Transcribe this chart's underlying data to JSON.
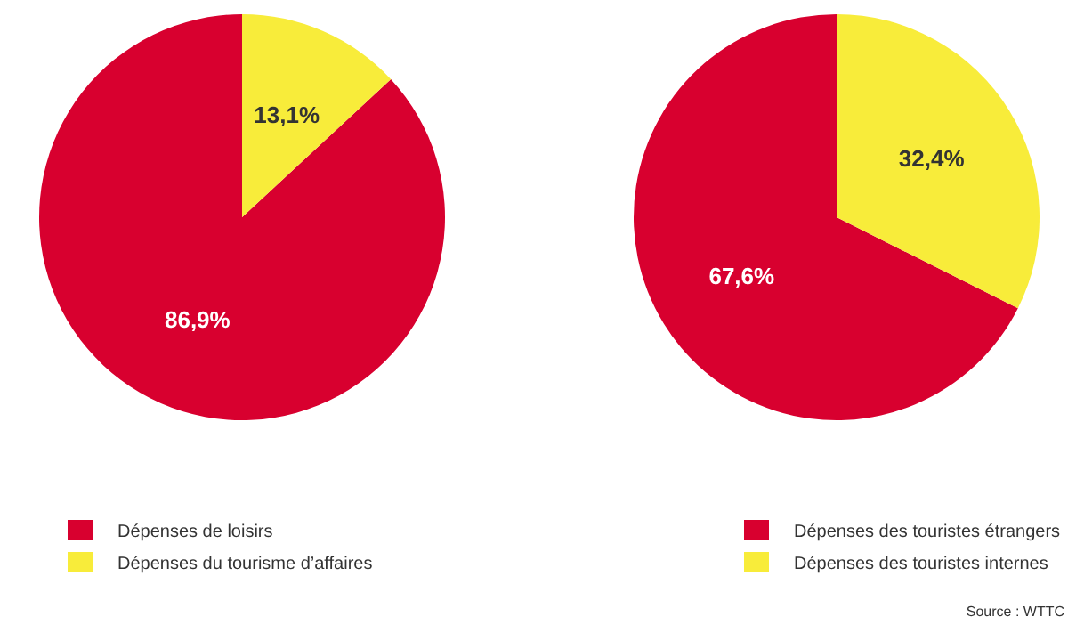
{
  "chart_data": [
    {
      "type": "pie",
      "categories": [
        "Dépenses de loisirs",
        "Dépenses du tourisme d’affaires"
      ],
      "values": [
        86.9,
        13.1
      ],
      "colors": [
        "#d8002f",
        "#f8ec3a"
      ],
      "value_labels": [
        "86,9%",
        "13,1%"
      ],
      "legend": "bottom"
    },
    {
      "type": "pie",
      "categories": [
        "Dépenses des touristes étrangers",
        "Dépenses des touristes internes"
      ],
      "values": [
        67.6,
        32.4
      ],
      "colors": [
        "#d8002f",
        "#f8ec3a"
      ],
      "value_labels": [
        "67,6%",
        "32,4%"
      ],
      "legend": "bottom",
      "annotations": [
        "Source : WTTC"
      ]
    }
  ]
}
